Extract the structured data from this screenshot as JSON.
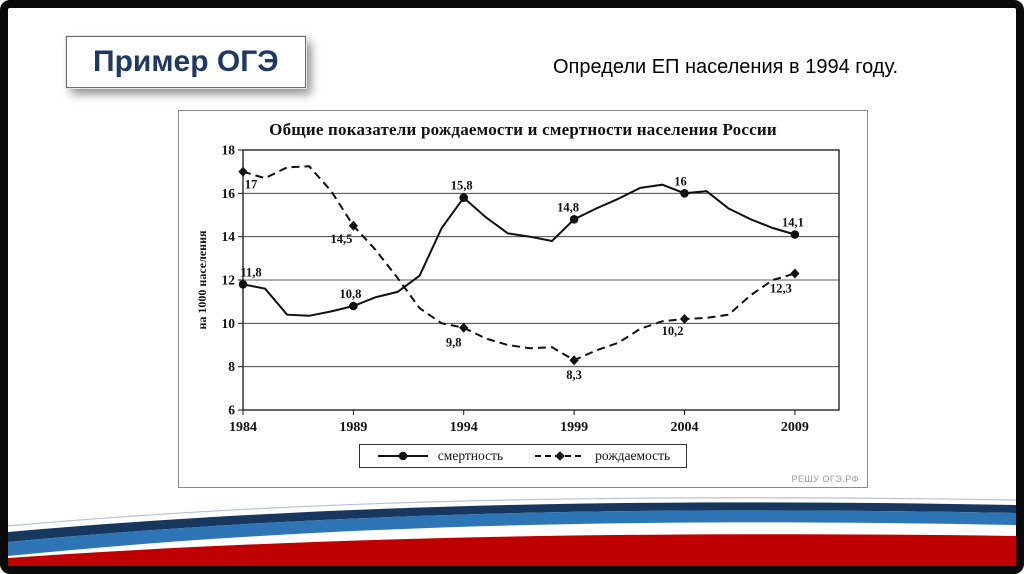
{
  "slide": {
    "badge": "Пример ОГЭ",
    "caption": "Определи ЕП населения в 1994 году.",
    "watermark": "РЕШУ ОГЭ.РФ",
    "flag_colors": {
      "navy": "#17375e",
      "blue": "#2e75b6",
      "red": "#c00000"
    }
  },
  "chart_data": {
    "type": "line",
    "title": "Общие показатели рождаемости и смертности населения России",
    "xlabel": "",
    "ylabel": "на 1000 населения",
    "xlim": [
      1984,
      2011
    ],
    "ylim": [
      6,
      18
    ],
    "x_ticks": [
      1984,
      1989,
      1994,
      1999,
      2004,
      2009
    ],
    "y_ticks": [
      6,
      8,
      10,
      12,
      14,
      16,
      18
    ],
    "grid": "horizontal",
    "legend_position": "bottom",
    "series": [
      {
        "name": "смертность",
        "style": "solid",
        "marker": "circle",
        "points": [
          [
            1984,
            11.8
          ],
          [
            1985,
            11.6
          ],
          [
            1986,
            10.4
          ],
          [
            1987,
            10.35
          ],
          [
            1988,
            10.55
          ],
          [
            1989,
            10.8
          ],
          [
            1990,
            11.2
          ],
          [
            1991,
            11.45
          ],
          [
            1992,
            12.2
          ],
          [
            1993,
            14.4
          ],
          [
            1994,
            15.8
          ],
          [
            1995,
            14.9
          ],
          [
            1996,
            14.15
          ],
          [
            1997,
            14.0
          ],
          [
            1998,
            13.8
          ],
          [
            1999,
            14.8
          ],
          [
            2000,
            15.3
          ],
          [
            2001,
            15.75
          ],
          [
            2002,
            16.25
          ],
          [
            2003,
            16.4
          ],
          [
            2004,
            16.0
          ],
          [
            2005,
            16.1
          ],
          [
            2006,
            15.3
          ],
          [
            2007,
            14.8
          ],
          [
            2008,
            14.4
          ],
          [
            2009,
            14.1
          ]
        ],
        "labeled_points": [
          {
            "x": 1984,
            "y": 11.8,
            "label": "11,8",
            "dx": 8,
            "dy": -8
          },
          {
            "x": 1989,
            "y": 10.8,
            "label": "10,8",
            "dx": -3,
            "dy": -8
          },
          {
            "x": 1994,
            "y": 15.8,
            "label": "15,8",
            "dx": -2,
            "dy": -8
          },
          {
            "x": 1999,
            "y": 14.8,
            "label": "14,8",
            "dx": -6,
            "dy": -8
          },
          {
            "x": 2004,
            "y": 16.0,
            "label": "16",
            "dx": -4,
            "dy": -8
          },
          {
            "x": 2009,
            "y": 14.1,
            "label": "14,1",
            "dx": -2,
            "dy": -8
          }
        ]
      },
      {
        "name": "рождаемость",
        "style": "dashed",
        "marker": "diamond",
        "points": [
          [
            1984,
            17.0
          ],
          [
            1985,
            16.7
          ],
          [
            1986,
            17.2
          ],
          [
            1987,
            17.25
          ],
          [
            1988,
            16.1
          ],
          [
            1989,
            14.5
          ],
          [
            1990,
            13.4
          ],
          [
            1991,
            12.1
          ],
          [
            1992,
            10.7
          ],
          [
            1993,
            10.0
          ],
          [
            1994,
            9.8
          ],
          [
            1995,
            9.3
          ],
          [
            1996,
            9.0
          ],
          [
            1997,
            8.85
          ],
          [
            1998,
            8.9
          ],
          [
            1999,
            8.3
          ],
          [
            2000,
            8.75
          ],
          [
            2001,
            9.1
          ],
          [
            2002,
            9.75
          ],
          [
            2003,
            10.1
          ],
          [
            2004,
            10.2
          ],
          [
            2005,
            10.25
          ],
          [
            2006,
            10.4
          ],
          [
            2007,
            11.3
          ],
          [
            2008,
            12.0
          ],
          [
            2009,
            12.3
          ]
        ],
        "labeled_points": [
          {
            "x": 1984,
            "y": 17.0,
            "label": "17",
            "dx": 8,
            "dy": 17
          },
          {
            "x": 1989,
            "y": 14.5,
            "label": "14,5",
            "dx": -12,
            "dy": 17
          },
          {
            "x": 1994,
            "y": 9.8,
            "label": "9,8",
            "dx": -10,
            "dy": 19
          },
          {
            "x": 1999,
            "y": 8.3,
            "label": "8,3",
            "dx": 0,
            "dy": 19
          },
          {
            "x": 2004,
            "y": 10.2,
            "label": "10,2",
            "dx": -12,
            "dy": 16
          },
          {
            "x": 2009,
            "y": 12.3,
            "label": "12,3",
            "dx": -14,
            "dy": 19
          }
        ]
      }
    ]
  }
}
